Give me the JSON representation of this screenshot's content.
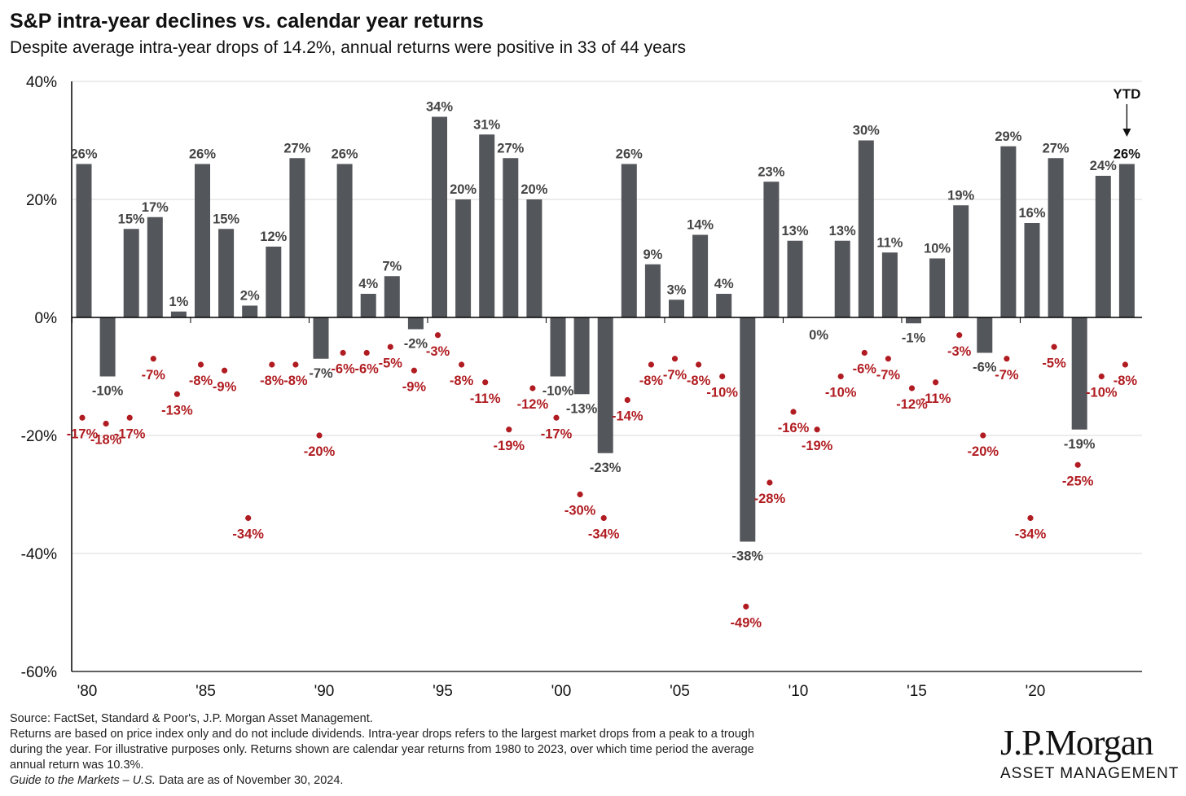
{
  "colors": {
    "bar": "#53565A",
    "drop": "#B01C21",
    "ytd_label": "#111111",
    "grid": "#D9D9D9"
  },
  "chart_data": {
    "type": "bar",
    "title": "S&P intra-year declines vs. calendar year returns",
    "subtitle": "Despite average intra-year drops of 14.2%, annual returns were positive in 33 of 44 years",
    "ylim": [
      -60,
      40
    ],
    "yticks": [
      40,
      20,
      0,
      -20,
      -40,
      -60
    ],
    "ytick_labels": [
      "40%",
      "20%",
      "0%",
      "-20%",
      "-40%",
      "-60%"
    ],
    "xticks": [
      {
        "year": 1980,
        "label": "'80"
      },
      {
        "year": 1985,
        "label": "'85"
      },
      {
        "year": 1990,
        "label": "'90"
      },
      {
        "year": 1995,
        "label": "'95"
      },
      {
        "year": 2000,
        "label": "'00"
      },
      {
        "year": 2005,
        "label": "'05"
      },
      {
        "year": 2010,
        "label": "'10"
      },
      {
        "year": 2015,
        "label": "'15"
      },
      {
        "year": 2020,
        "label": "'20"
      }
    ],
    "grid": true,
    "ytd_label": "YTD",
    "years": [
      1980,
      1981,
      1982,
      1983,
      1984,
      1985,
      1986,
      1987,
      1988,
      1989,
      1990,
      1991,
      1992,
      1993,
      1994,
      1995,
      1996,
      1997,
      1998,
      1999,
      2000,
      2001,
      2002,
      2003,
      2004,
      2005,
      2006,
      2007,
      2008,
      2009,
      2010,
      2011,
      2012,
      2013,
      2014,
      2015,
      2016,
      2017,
      2018,
      2019,
      2020,
      2021,
      2022,
      2023,
      2024
    ],
    "series": [
      {
        "kind": "bar",
        "values": [
          26,
          -10,
          15,
          17,
          1,
          26,
          15,
          2,
          12,
          27,
          -7,
          26,
          4,
          7,
          -2,
          34,
          20,
          31,
          27,
          20,
          -10,
          -13,
          -23,
          26,
          9,
          3,
          14,
          4,
          -38,
          23,
          13,
          0,
          13,
          30,
          11,
          -1,
          10,
          19,
          -6,
          29,
          16,
          27,
          -19,
          24,
          26
        ],
        "labels": [
          "26%",
          "-10%",
          "15%",
          "17%",
          "1%",
          "26%",
          "15%",
          "2%",
          "12%",
          "27%",
          "-7%",
          "26%",
          "4%",
          "7%",
          "-2%",
          "34%",
          "20%",
          "31%",
          "27%",
          "20%",
          "-10%",
          "-13%",
          "-23%",
          "26%",
          "9%",
          "3%",
          "14%",
          "4%",
          "-38%",
          "23%",
          "13%",
          "0%",
          "13%",
          "30%",
          "11%",
          "-1%",
          "10%",
          "19%",
          "-6%",
          "29%",
          "16%",
          "27%",
          "-19%",
          "24%",
          "26%"
        ]
      },
      {
        "kind": "dot",
        "values": [
          -17,
          -18,
          -17,
          -7,
          -13,
          -8,
          -9,
          -34,
          -8,
          -8,
          -20,
          -6,
          -6,
          -5,
          -9,
          -3,
          -8,
          -11,
          -19,
          -12,
          -17,
          -30,
          -34,
          -14,
          -8,
          -7,
          -8,
          -10,
          -49,
          -28,
          -16,
          -19,
          -10,
          -6,
          -7,
          -12,
          -11,
          -3,
          -20,
          -7,
          -34,
          -5,
          -25,
          -10,
          -8
        ],
        "labels": [
          "-17%",
          "-18%",
          "-17%",
          "-7%",
          "-13%",
          "-8%",
          "-9%",
          "-34%",
          "-8%",
          "-8%",
          "-20%",
          "-6%",
          "-6%",
          "-5%",
          "-9%",
          "-3%",
          "-8%",
          "-11%",
          "-19%",
          "-12%",
          "-17%",
          "-30%",
          "-34%",
          "-14%",
          "-8%",
          "-7%",
          "-8%",
          "-10%",
          "-49%",
          "-28%",
          "-16%",
          "-19%",
          "-10%",
          "-6%",
          "-7%",
          "-12%",
          "-11%",
          "-3%",
          "-20%",
          "-7%",
          "-34%",
          "-5%",
          "-25%",
          "-10%",
          "-8%"
        ]
      }
    ]
  },
  "footnote": {
    "source": "Source: FactSet, Standard & Poor's, J.P. Morgan Asset Management.",
    "line1": "Returns are based on price index only and do not include dividends.  Intra-year drops refers to the largest market drops from a peak to a trough",
    "line2": "during the year. For illustrative purposes only. Returns shown are calendar year returns from 1980 to 2023, over which time period the average",
    "line3": "annual return was 10.3%.",
    "guide_italic": "Guide to the Markets – U.S.",
    "asof": " Data are as of November 30, 2024."
  },
  "brand": {
    "name": "J.P.Morgan",
    "sub": "ASSET MANAGEMENT"
  }
}
